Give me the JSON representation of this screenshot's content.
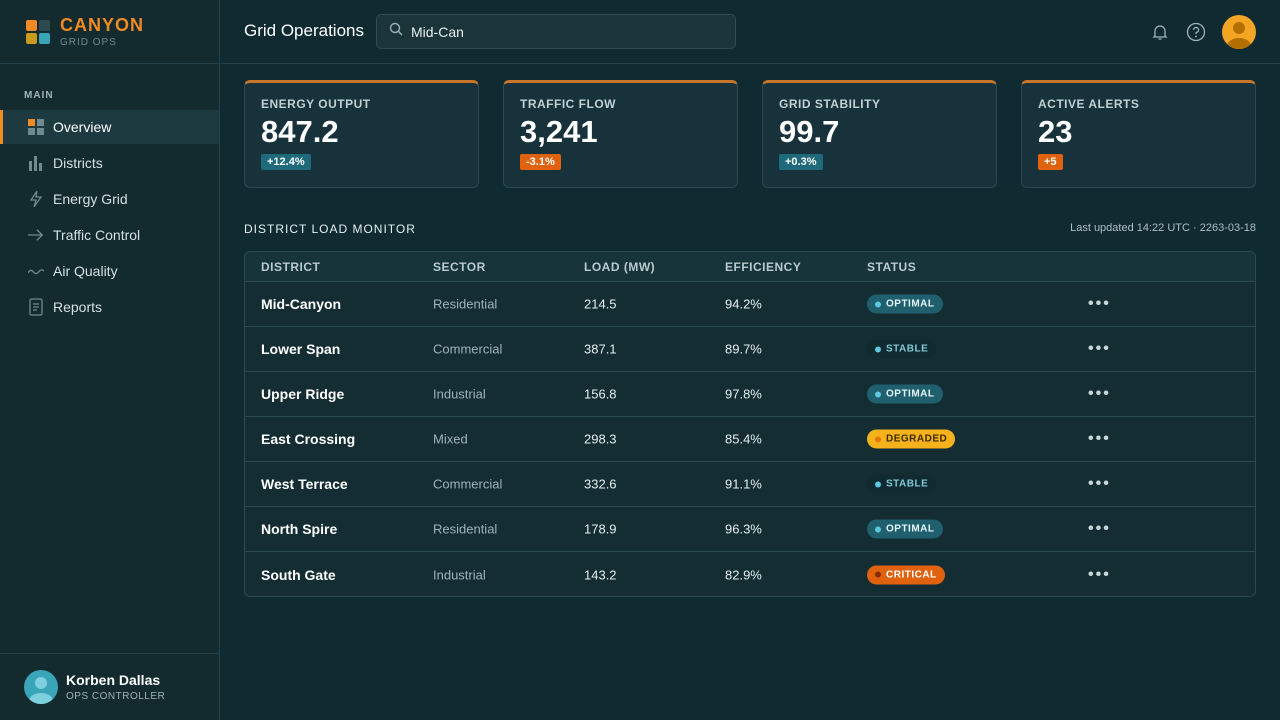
{
  "brand": {
    "name": "CANYON",
    "sub": "GRID OPS",
    "colors": [
      "#f08a24",
      "#2e4a50",
      "#c99a1c",
      "#3aa5b8"
    ]
  },
  "sidebar": {
    "section": "MAIN",
    "items": [
      {
        "label": "Overview",
        "icon": "grid-icon",
        "active": true
      },
      {
        "label": "Districts",
        "icon": "bar-chart-icon"
      },
      {
        "label": "Energy Grid",
        "icon": "lightning-icon"
      },
      {
        "label": "Traffic Control",
        "icon": "arrow-right-icon"
      },
      {
        "label": "Air Quality",
        "icon": "wave-icon"
      },
      {
        "label": "Reports",
        "icon": "document-icon"
      }
    ]
  },
  "user": {
    "name": "Korben Dallas",
    "role": "OPS CONTROLLER"
  },
  "header": {
    "title": "Grid Operations",
    "search_value": "Mid-Can"
  },
  "stats": [
    {
      "label": "ENERGY OUTPUT",
      "value": "847.2",
      "delta": "+12.4%",
      "trend": "pos"
    },
    {
      "label": "TRAFFIC FLOW",
      "value": "3,241",
      "delta": "-3.1%",
      "trend": "neg"
    },
    {
      "label": "GRID STABILITY",
      "value": "99.7",
      "delta": "+0.3%",
      "trend": "pos"
    },
    {
      "label": "ACTIVE ALERTS",
      "value": "23",
      "delta": "+5",
      "trend": "neg"
    }
  ],
  "table": {
    "title": "DISTRICT LOAD MONITOR",
    "updated": "Last updated 14:22 UTC · 2263-03-18",
    "columns": [
      "DISTRICT",
      "SECTOR",
      "LOAD (MW)",
      "EFFICIENCY",
      "STATUS"
    ],
    "rows": [
      {
        "district": "Mid-Canyon",
        "sector": "Residential",
        "load": "214.5",
        "efficiency": "94.2%",
        "status": "OPTIMAL"
      },
      {
        "district": "Lower Span",
        "sector": "Commercial",
        "load": "387.1",
        "efficiency": "89.7%",
        "status": "STABLE"
      },
      {
        "district": "Upper Ridge",
        "sector": "Industrial",
        "load": "156.8",
        "efficiency": "97.8%",
        "status": "OPTIMAL"
      },
      {
        "district": "East Crossing",
        "sector": "Mixed",
        "load": "298.3",
        "efficiency": "85.4%",
        "status": "DEGRADED"
      },
      {
        "district": "West Terrace",
        "sector": "Commercial",
        "load": "332.6",
        "efficiency": "91.1%",
        "status": "STABLE"
      },
      {
        "district": "North Spire",
        "sector": "Residential",
        "load": "178.9",
        "efficiency": "96.3%",
        "status": "OPTIMAL"
      },
      {
        "district": "South Gate",
        "sector": "Industrial",
        "load": "143.2",
        "efficiency": "82.9%",
        "status": "CRITICAL"
      }
    ],
    "more_label": "•••"
  }
}
